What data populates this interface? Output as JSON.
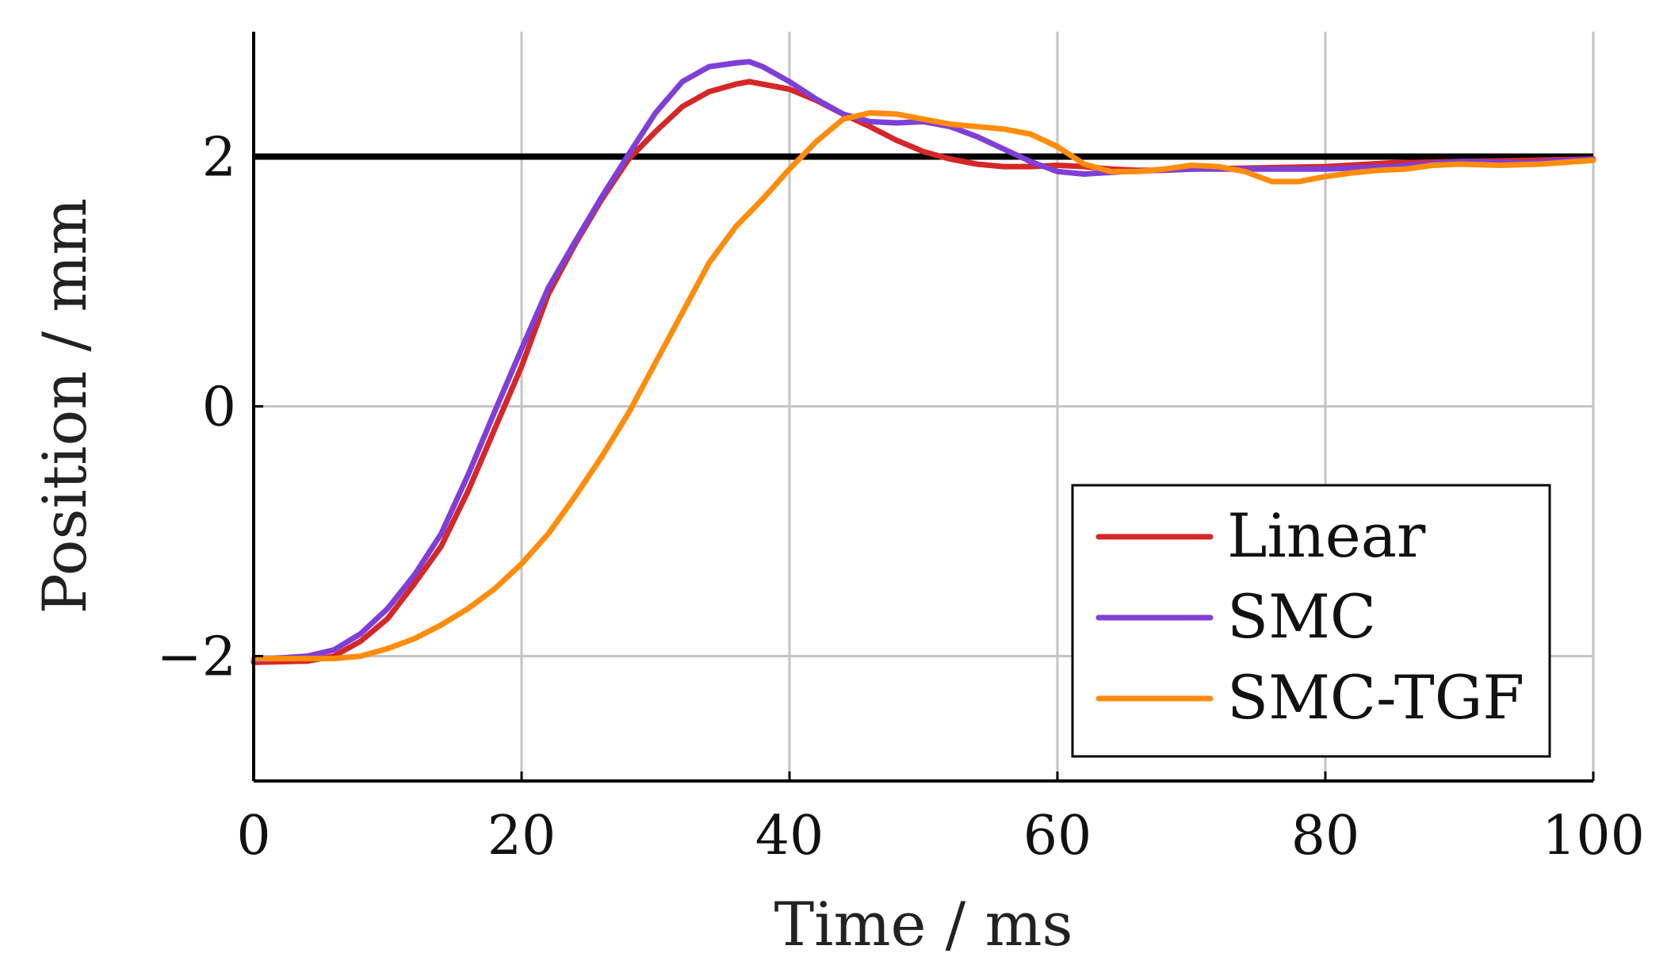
{
  "chart_data": {
    "type": "line",
    "title": "",
    "xlabel": "Time / ms",
    "ylabel": "Position / mm",
    "xlim": [
      0,
      100
    ],
    "ylim": [
      -3,
      3
    ],
    "xticks": [
      0,
      20,
      40,
      60,
      80,
      100
    ],
    "xtick_labels": [
      "0",
      "20",
      "40",
      "60",
      "80",
      "100"
    ],
    "yticks": [
      -2,
      0,
      2
    ],
    "ytick_labels": [
      "−2",
      "0",
      "2"
    ],
    "grid": true,
    "legend_position": "bottom-right",
    "reference_line": {
      "y": 2,
      "color": "#000000"
    },
    "series": [
      {
        "name": "Linear",
        "color": "#d62728",
        "x": [
          0,
          4,
          6,
          8,
          10,
          12,
          14,
          16,
          18,
          20,
          22,
          24,
          26,
          28,
          30,
          32,
          34,
          36,
          37,
          40,
          42,
          44,
          46,
          48,
          50,
          52,
          54,
          56,
          58,
          60,
          62,
          64,
          66,
          68,
          70,
          75,
          80,
          85,
          90,
          95,
          100
        ],
        "values": [
          -2.05,
          -2.04,
          -2.0,
          -1.88,
          -1.7,
          -1.42,
          -1.12,
          -0.68,
          -0.18,
          0.32,
          0.9,
          1.3,
          1.66,
          1.98,
          2.2,
          2.4,
          2.52,
          2.58,
          2.6,
          2.54,
          2.45,
          2.34,
          2.24,
          2.13,
          2.04,
          1.98,
          1.94,
          1.92,
          1.92,
          1.93,
          1.92,
          1.9,
          1.89,
          1.89,
          1.9,
          1.91,
          1.92,
          1.95,
          1.96,
          1.97,
          1.98
        ]
      },
      {
        "name": "SMC",
        "color": "#7f3fd6",
        "x": [
          0,
          4,
          6,
          8,
          10,
          12,
          14,
          16,
          18,
          20,
          22,
          24,
          26,
          28,
          30,
          32,
          34,
          36,
          37,
          38,
          40,
          42,
          44,
          46,
          48,
          50,
          52,
          54,
          56,
          58,
          60,
          62,
          65,
          70,
          75,
          80,
          85,
          90,
          95,
          100
        ],
        "values": [
          -2.03,
          -2.0,
          -1.95,
          -1.82,
          -1.62,
          -1.35,
          -1.02,
          -0.55,
          -0.04,
          0.46,
          0.95,
          1.32,
          1.68,
          2.02,
          2.35,
          2.6,
          2.72,
          2.75,
          2.76,
          2.72,
          2.6,
          2.46,
          2.34,
          2.28,
          2.27,
          2.28,
          2.24,
          2.16,
          2.06,
          1.96,
          1.88,
          1.86,
          1.88,
          1.9,
          1.9,
          1.9,
          1.92,
          1.96,
          1.95,
          1.98
        ]
      },
      {
        "name": "SMC-TGF",
        "color": "#ff8c0a",
        "x": [
          0,
          4,
          6,
          8,
          10,
          12,
          14,
          16,
          18,
          20,
          22,
          24,
          26,
          28,
          30,
          32,
          34,
          36,
          38,
          40,
          42,
          44,
          46,
          48,
          50,
          52,
          54,
          56,
          58,
          60,
          62,
          64,
          66,
          68,
          70,
          72,
          74,
          76,
          78,
          80,
          82,
          84,
          86,
          88,
          90,
          93,
          96,
          100
        ],
        "values": [
          -2.02,
          -2.02,
          -2.02,
          -2.0,
          -1.94,
          -1.86,
          -1.75,
          -1.62,
          -1.46,
          -1.26,
          -1.02,
          -0.72,
          -0.4,
          -0.05,
          0.35,
          0.75,
          1.15,
          1.44,
          1.66,
          1.9,
          2.12,
          2.3,
          2.35,
          2.34,
          2.3,
          2.26,
          2.24,
          2.22,
          2.18,
          2.08,
          1.94,
          1.88,
          1.88,
          1.9,
          1.93,
          1.92,
          1.88,
          1.8,
          1.8,
          1.84,
          1.87,
          1.89,
          1.9,
          1.93,
          1.94,
          1.93,
          1.94,
          1.97
        ]
      }
    ]
  }
}
